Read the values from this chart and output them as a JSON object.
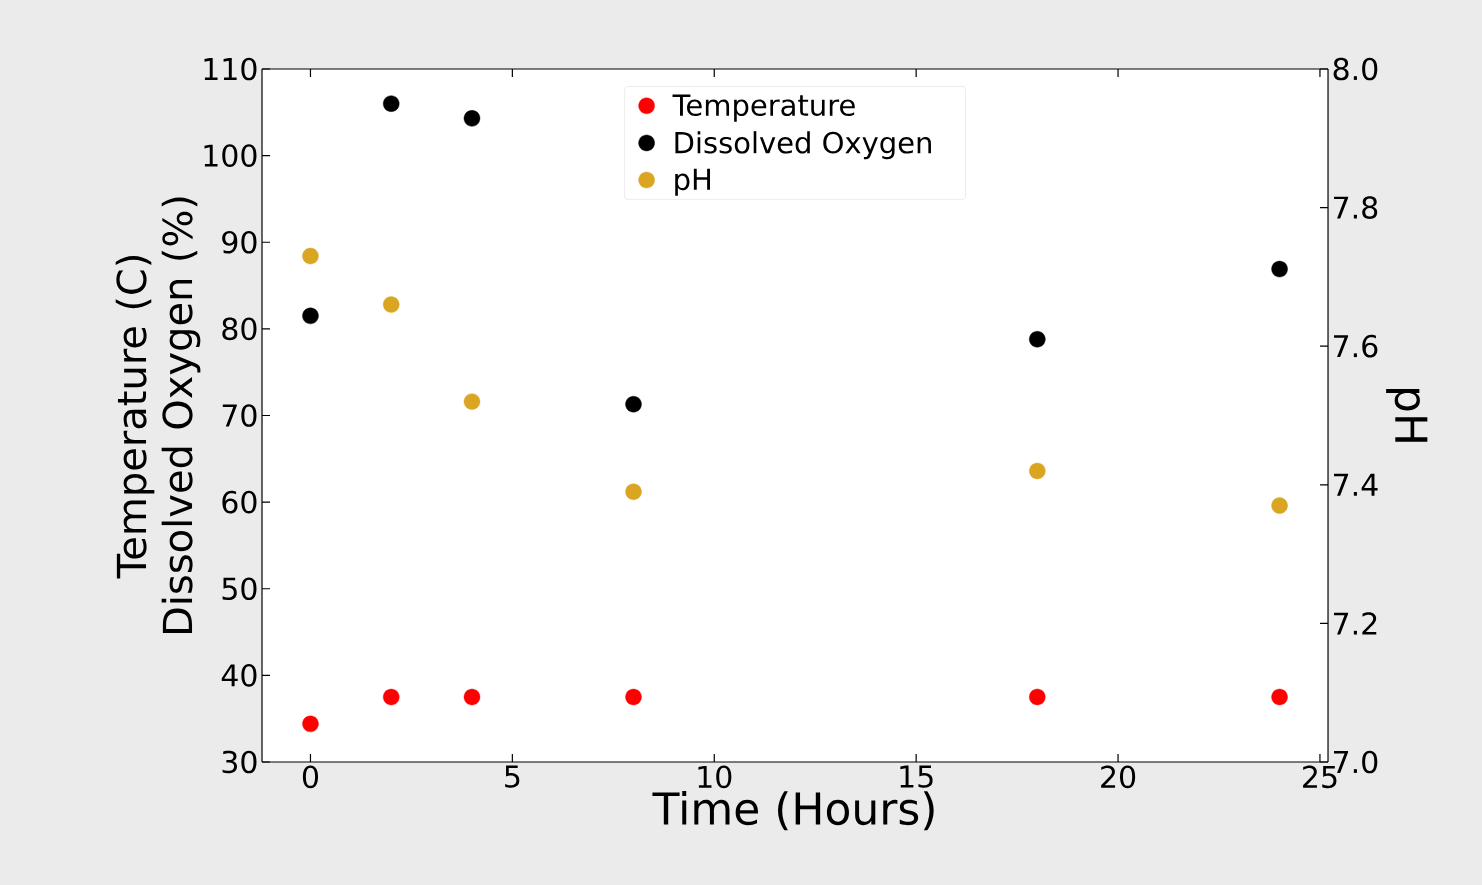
{
  "chart_data": {
    "type": "scatter",
    "xlabel": "Time (Hours)",
    "ylabel": "Temperature (C) Dissolved Oxygen (%)",
    "y2label": "pH",
    "x": [
      0,
      2,
      4,
      8,
      18,
      24
    ],
    "series": [
      {
        "name": "Temperature",
        "color": "#ff0000",
        "values": [
          34.4,
          37.5,
          37.5,
          37.5,
          37.5,
          37.5
        ]
      },
      {
        "name": "Dissolved Oxygen",
        "color": "#000000",
        "values": [
          81.5,
          106.0,
          104.3,
          71.3,
          78.8,
          86.9
        ]
      },
      {
        "name": "pH",
        "color": "#daa520",
        "axis": "y2",
        "values": [
          7.73,
          7.66,
          7.52,
          7.39,
          7.42,
          7.37
        ]
      }
    ],
    "xlim": [
      -1.2,
      25.2
    ],
    "xticks": [
      0,
      5,
      10,
      15,
      20,
      25
    ],
    "ylim": [
      30,
      110
    ],
    "yticks": [
      30,
      40,
      50,
      60,
      70,
      80,
      90,
      100,
      110
    ],
    "y2lim": [
      7.0,
      8.0
    ],
    "y2ticks": [
      {
        "value": 7.0,
        "label": "7.0"
      },
      7.2,
      7.4,
      7.6,
      7.8,
      {
        "value": 8.0,
        "label": "8.0"
      }
    ],
    "legend": "top",
    "grid": false
  }
}
